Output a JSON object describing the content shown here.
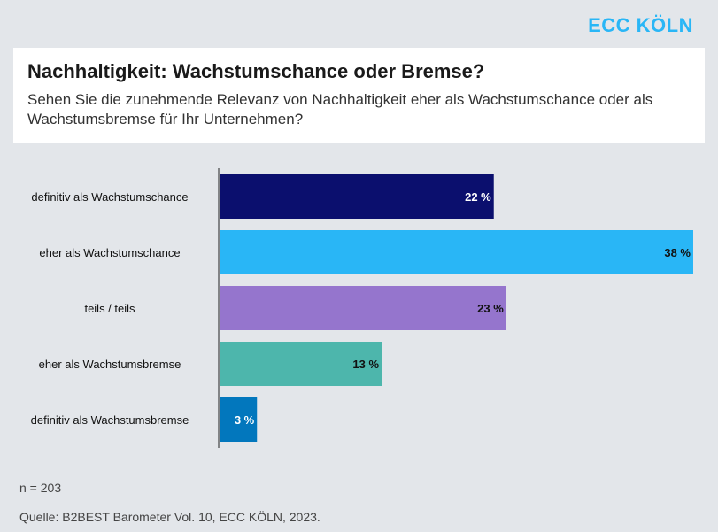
{
  "brand": "ECC KÖLN",
  "header": {
    "title": "Nachhaltigkeit: Wachstumschance oder Bremse?",
    "subtitle": "Sehen Sie die zunehmende Relevanz von Nachhaltigkeit eher als Wachstumschance oder als Wachstumsbremse für Ihr Unternehmen?"
  },
  "chart_data": {
    "type": "bar",
    "orientation": "horizontal",
    "categories": [
      "definitiv als Wachstumschance",
      "eher als Wachstumschance",
      "teils / teils",
      "eher als Wachstumsbremse",
      "definitiv als Wachstumsbremse"
    ],
    "values": [
      22,
      38,
      23,
      13,
      3
    ],
    "value_labels": [
      "22 %",
      "38 %",
      "23 %",
      "13 %",
      "3 %"
    ],
    "colors": [
      "#0b0f6e",
      "#29b6f6",
      "#9575cd",
      "#4db6ac",
      "#0277bd"
    ],
    "label_colors": [
      "#ffffff",
      "#111111",
      "#111111",
      "#111111",
      "#ffffff"
    ],
    "xlim": [
      0,
      38
    ],
    "title": "Nachhaltigkeit: Wachstumschance oder Bremse?",
    "xlabel": "",
    "ylabel": ""
  },
  "footer": {
    "sample": "n = 203",
    "source": "Quelle: B2BEST Barometer Vol. 10, ECC KÖLN, 2023."
  }
}
